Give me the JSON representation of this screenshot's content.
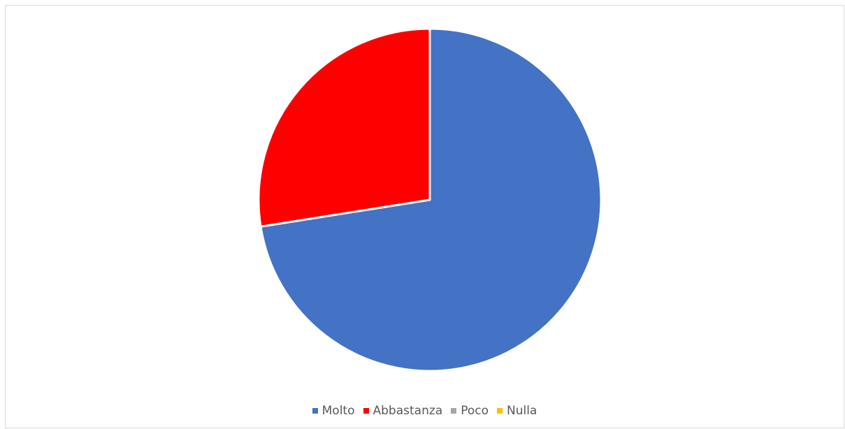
{
  "chart_data": {
    "type": "pie",
    "categories": [
      "Molto",
      "Abbastanza",
      "Poco",
      "Nulla"
    ],
    "values": [
      72.5,
      27.5,
      0,
      0
    ],
    "colors": [
      "#4472C4",
      "#FF0000",
      "#A5A5A5",
      "#FFC000"
    ],
    "title": "",
    "legend_position": "bottom",
    "start_angle_deg": 0,
    "direction": "clockwise",
    "slice_border_color": "#ffffff"
  }
}
